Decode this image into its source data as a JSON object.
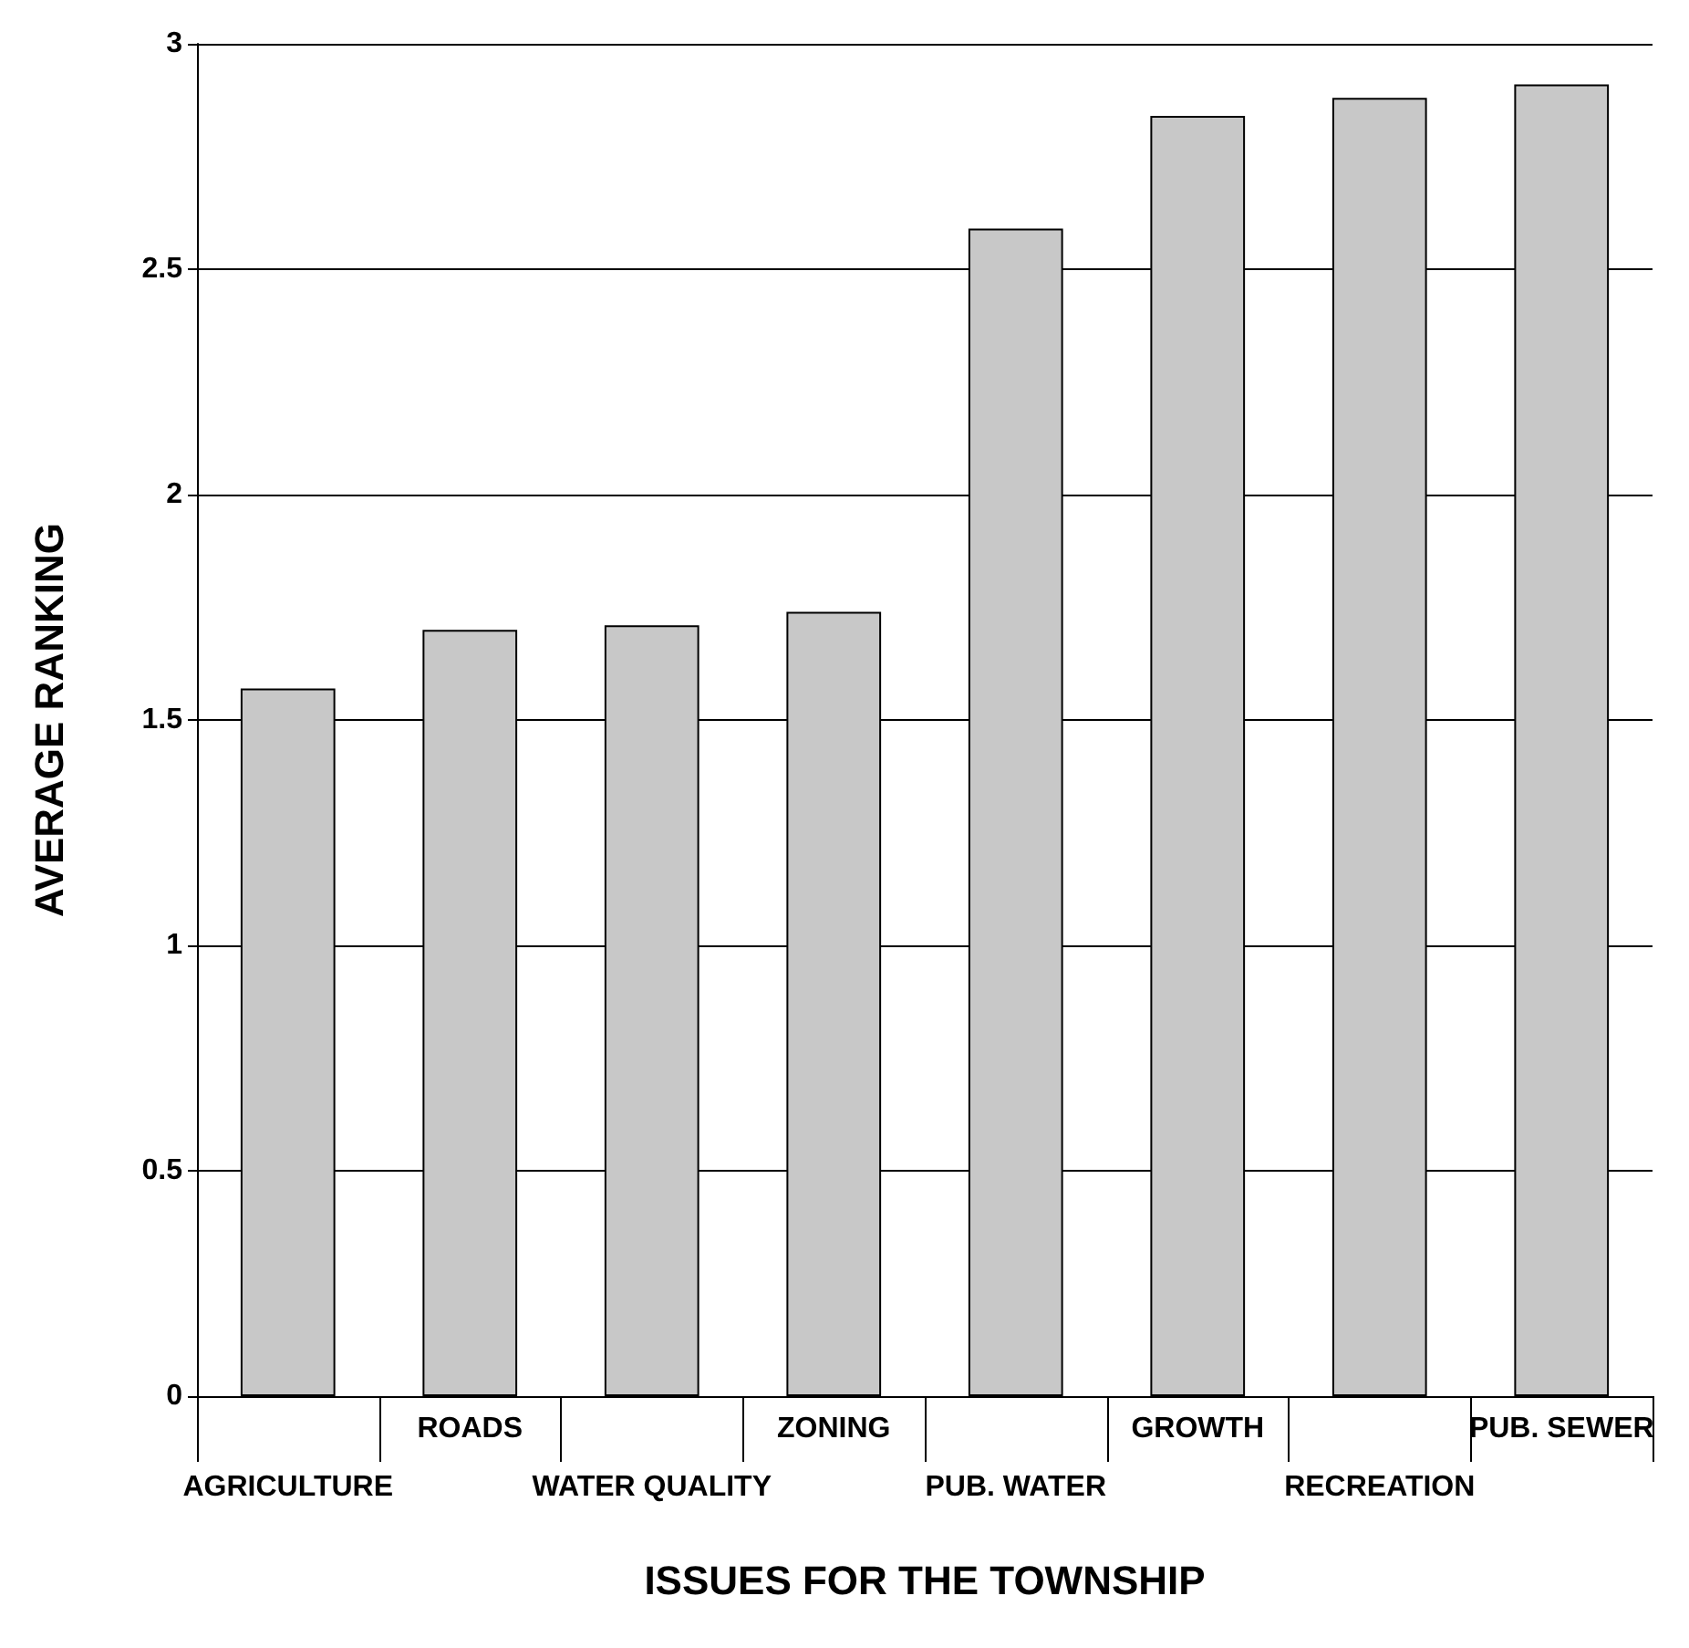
{
  "chart_data": {
    "type": "bar",
    "xlabel": "ISSUES FOR THE TOWNSHIP",
    "ylabel": "AVERAGE RANKING",
    "categories": [
      "AGRICULTURE",
      "ROADS",
      "WATER QUALITY",
      "ZONING",
      "PUB. WATER",
      "GROWTH",
      "RECREATION",
      "PUB. SEWER"
    ],
    "values": [
      1.57,
      1.7,
      1.71,
      1.74,
      2.59,
      2.84,
      2.88,
      2.91
    ],
    "color": "#c8c8c8",
    "ylim": [
      0,
      3
    ],
    "yticks": [
      0,
      0.5,
      1,
      1.5,
      2,
      2.5,
      3
    ],
    "grid": "y"
  }
}
